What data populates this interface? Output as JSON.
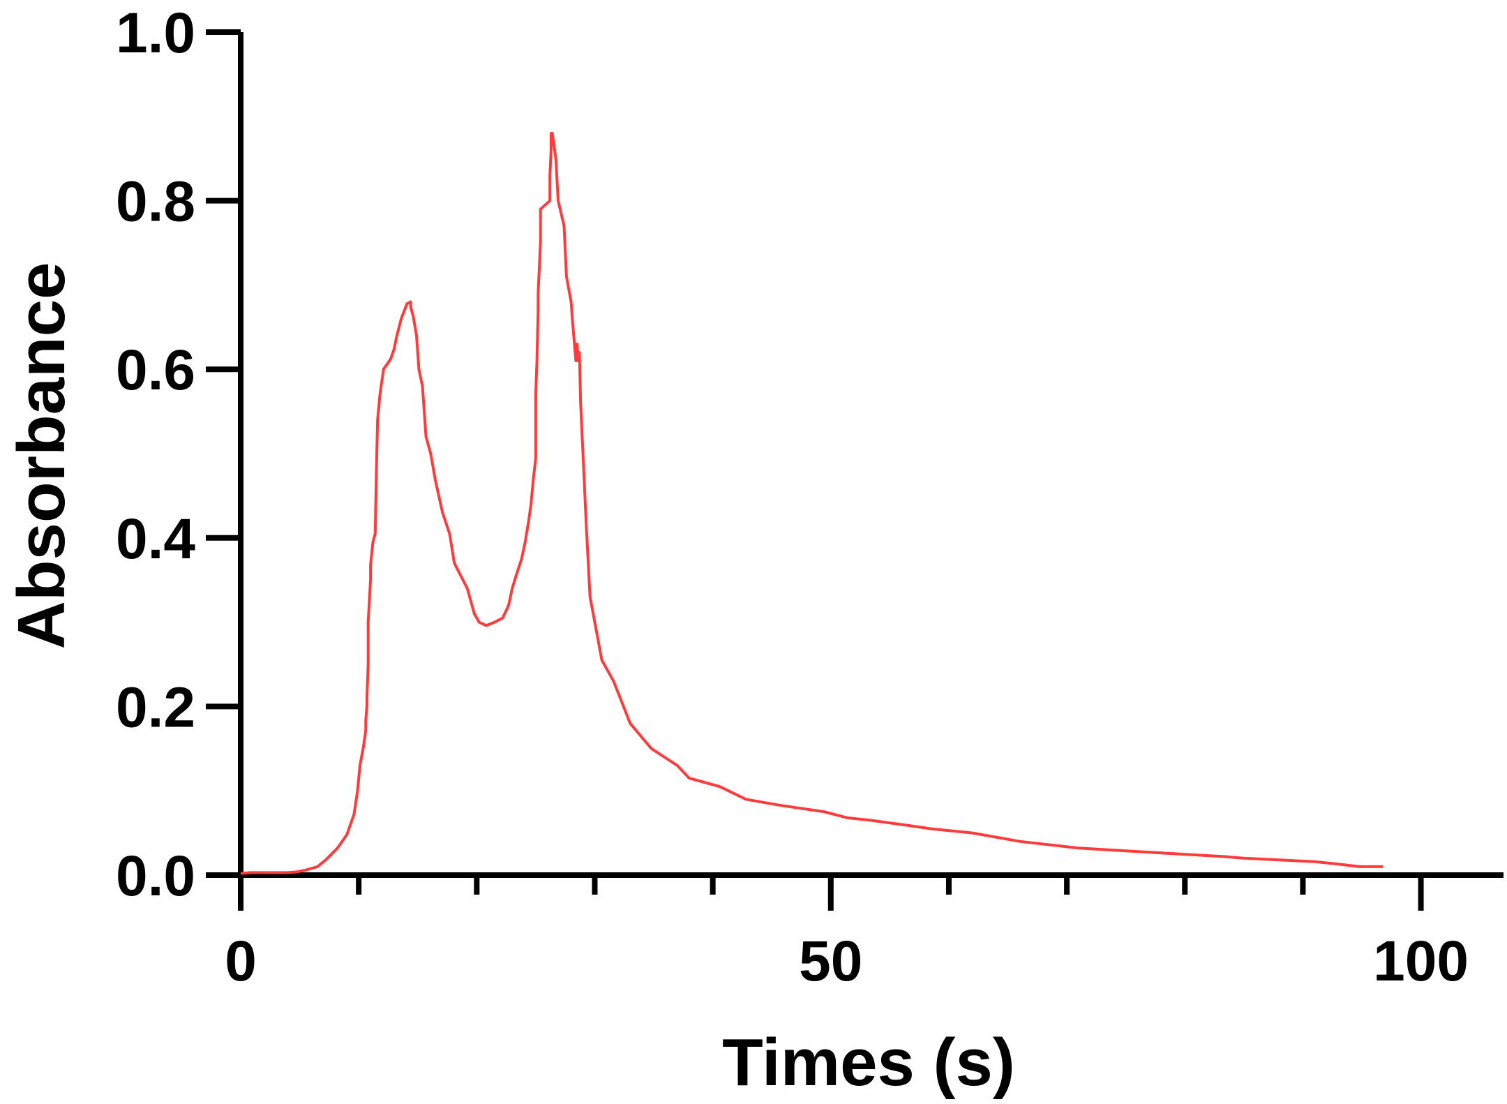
{
  "chart_data": {
    "type": "line",
    "xlabel": "Times (s)",
    "ylabel": "Absorbance",
    "xlim": [
      0,
      107
    ],
    "ylim": [
      0,
      1.0
    ],
    "xticks": [
      0,
      10,
      20,
      30,
      40,
      50,
      60,
      70,
      80,
      90,
      100
    ],
    "xtick_labels": [
      "0",
      "",
      "",
      "",
      "",
      "50",
      "",
      "",
      "",
      "",
      "100"
    ],
    "yticks": [
      0.0,
      0.2,
      0.4,
      0.6,
      0.8,
      1.0
    ],
    "ytick_labels": [
      "0.0",
      "0.2",
      "0.4",
      "0.6",
      "0.8",
      "1.0"
    ],
    "grid": false,
    "series": [
      {
        "color": "#ff3b3b",
        "x": [
          0,
          0.8,
          2,
          4,
          4.8,
          5.5,
          6.5,
          7.2,
          8.2,
          9.0,
          9.6,
          9.9,
          10.1,
          10.4,
          10.6,
          10.6,
          10.7,
          10.7,
          10.8,
          10.8,
          10.9,
          11.0,
          11.0,
          11.2,
          11.4,
          11.5,
          11.6,
          11.8,
          12.1,
          12.7,
          13.0,
          13.2,
          13.6,
          14.1,
          14.4,
          14.4,
          14.6,
          14.9,
          15.1,
          15.4,
          15.7,
          16.1,
          16.5,
          17.1,
          17.7,
          18.1,
          19.2,
          19.8,
          20.2,
          20.8,
          21.5,
          22.2,
          22.7,
          23.0,
          23.4,
          23.8,
          24.1,
          24.4,
          24.6,
          24.8,
          25.0,
          25.0,
          25.1,
          25.2,
          25.2,
          25.4,
          25.4,
          26.2,
          26.2,
          26.3,
          26.3,
          26.4,
          26.7,
          26.9,
          27.4,
          27.6,
          28.0,
          28.1,
          28.4,
          28.5,
          28.6,
          28.7,
          28.7,
          28.8,
          28.9,
          29.1,
          29.2,
          29.3,
          29.6,
          30.0,
          30.6,
          31.6,
          33.0,
          34.8,
          37.0,
          38.0,
          40.6,
          42.8,
          45.6,
          49.5,
          51.4,
          53.4,
          56.0,
          58.5,
          62.0,
          66.0,
          71.0,
          76.0,
          79.5,
          83.3,
          85.0,
          88.0,
          91.0,
          93.0,
          94.8,
          96.8
        ],
        "values": [
          0.002,
          0.003,
          0.003,
          0.003,
          0.004,
          0.006,
          0.01,
          0.018,
          0.032,
          0.048,
          0.072,
          0.1,
          0.13,
          0.152,
          0.172,
          0.184,
          0.202,
          0.212,
          0.25,
          0.3,
          0.325,
          0.35,
          0.368,
          0.395,
          0.405,
          0.48,
          0.54,
          0.57,
          0.6,
          0.612,
          0.624,
          0.638,
          0.66,
          0.678,
          0.68,
          0.674,
          0.664,
          0.64,
          0.6,
          0.58,
          0.52,
          0.5,
          0.468,
          0.43,
          0.405,
          0.37,
          0.34,
          0.31,
          0.3,
          0.296,
          0.3,
          0.305,
          0.32,
          0.34,
          0.358,
          0.375,
          0.395,
          0.42,
          0.44,
          0.47,
          0.495,
          0.57,
          0.61,
          0.67,
          0.69,
          0.75,
          0.79,
          0.8,
          0.83,
          0.86,
          0.88,
          0.88,
          0.85,
          0.8,
          0.77,
          0.71,
          0.68,
          0.66,
          0.61,
          0.63,
          0.61,
          0.61,
          0.62,
          0.56,
          0.53,
          0.47,
          0.44,
          0.41,
          0.33,
          0.3,
          0.255,
          0.23,
          0.18,
          0.15,
          0.13,
          0.115,
          0.105,
          0.09,
          0.083,
          0.075,
          0.068,
          0.065,
          0.06,
          0.055,
          0.05,
          0.04,
          0.032,
          0.028,
          0.025,
          0.022,
          0.02,
          0.018,
          0.016,
          0.013,
          0.01,
          0.01
        ]
      }
    ]
  }
}
